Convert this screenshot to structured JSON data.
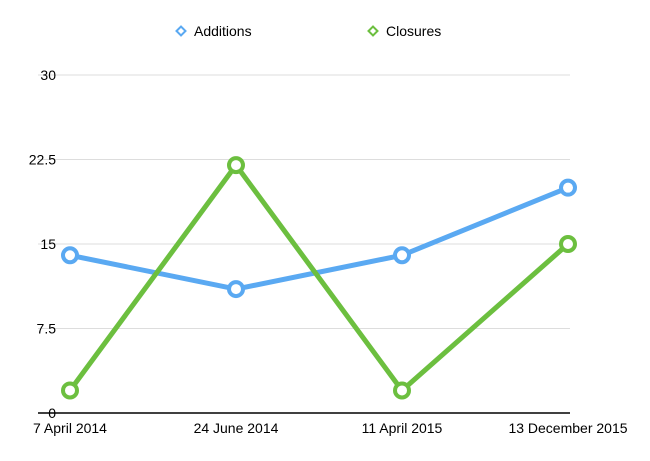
{
  "chart_data": {
    "type": "line",
    "categories": [
      "7 April 2014",
      "24 June 2014",
      "11 April 2015",
      "13 December 2015"
    ],
    "series": [
      {
        "name": "Additions",
        "values": [
          14,
          11,
          14,
          20
        ],
        "color": "#5aa9f2"
      },
      {
        "name": "Closures",
        "values": [
          2,
          22,
          2,
          15
        ],
        "color": "#6cbf3f"
      }
    ],
    "yticks": [
      "0",
      "7.5",
      "15",
      "22.5",
      "30"
    ],
    "ylim": [
      0,
      30
    ],
    "grid": true,
    "legend_position": "top-center"
  }
}
